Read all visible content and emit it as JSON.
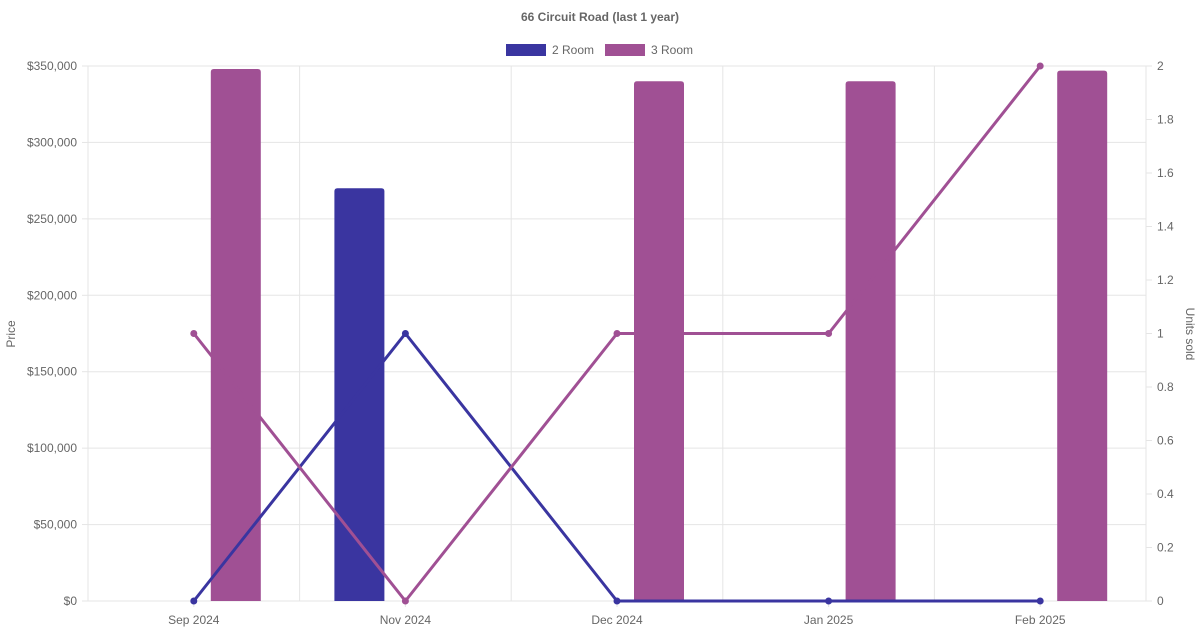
{
  "chart_data": {
    "type": "bar",
    "title": "66 Circuit Road (last 1 year)",
    "categories": [
      "Sep 2024",
      "Nov 2024",
      "Dec 2024",
      "Jan 2025",
      "Feb 2025"
    ],
    "ylabel": "Price",
    "y2label": "Units sold",
    "ylim": [
      0,
      350000
    ],
    "y2lim": [
      0,
      2
    ],
    "yticks": [
      "$0",
      "$50,000",
      "$100,000",
      "$150,000",
      "$200,000",
      "$250,000",
      "$300,000",
      "$350,000"
    ],
    "y2ticks": [
      "0",
      "0.2",
      "0.4",
      "0.6",
      "0.8",
      "1",
      "1.2",
      "1.4",
      "1.6",
      "1.8",
      "2"
    ],
    "grid": true,
    "legend_position": "top",
    "series": [
      {
        "name": "2 Room",
        "color": "#3a35a0",
        "price": [
          null,
          270000,
          null,
          null,
          null
        ],
        "units": [
          0,
          1,
          0,
          0,
          0
        ]
      },
      {
        "name": "3 Room",
        "color": "#a05094",
        "price": [
          348000,
          null,
          340000,
          340000,
          347000
        ],
        "units": [
          1,
          0,
          1,
          1,
          2
        ]
      }
    ]
  }
}
